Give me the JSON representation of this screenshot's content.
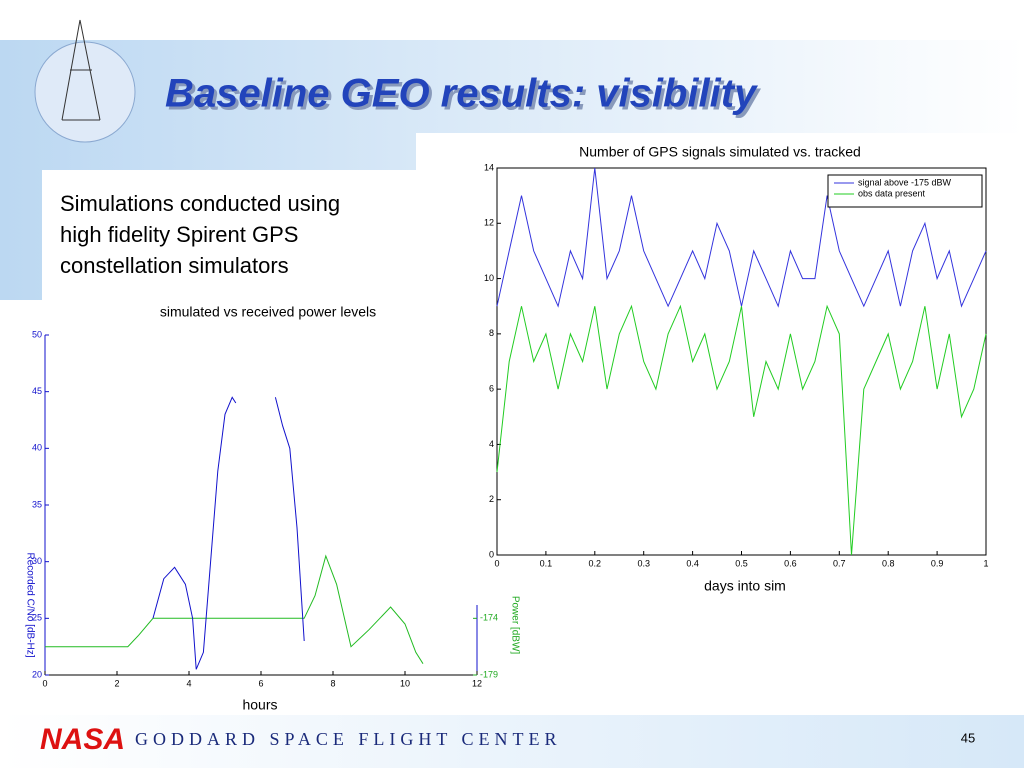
{
  "slide": {
    "title": "Baseline GEO results: visibility",
    "body": [
      "Simulations conducted using",
      "high fidelity Spirent GPS",
      "constellation simulators"
    ],
    "footer": "GODDARD SPACE FLIGHT CENTER",
    "logo": "NASA",
    "page": "45"
  },
  "chart_data": [
    {
      "type": "line",
      "title": "Number of GPS signals simulated vs. tracked",
      "xlabel": "days into sim",
      "legend": "upper right",
      "xlim": [
        0,
        1
      ],
      "xticks": [
        0,
        0.1,
        0.2,
        0.3,
        0.4,
        0.5,
        0.6,
        0.7,
        0.8,
        0.9,
        1
      ],
      "ylim": [
        0,
        14
      ],
      "yticks": [
        0,
        2,
        4,
        6,
        8,
        10,
        12,
        14
      ],
      "series": [
        {
          "name": "signal above -175 dBW",
          "color": "#3333dd",
          "x": [
            0,
            0.025,
            0.05,
            0.075,
            0.1,
            0.125,
            0.15,
            0.175,
            0.2,
            0.225,
            0.25,
            0.275,
            0.3,
            0.325,
            0.35,
            0.375,
            0.4,
            0.425,
            0.45,
            0.475,
            0.5,
            0.525,
            0.55,
            0.575,
            0.6,
            0.625,
            0.65,
            0.675,
            0.7,
            0.725,
            0.75,
            0.775,
            0.8,
            0.825,
            0.85,
            0.875,
            0.9,
            0.925,
            0.95,
            0.975,
            1
          ],
          "values": [
            9,
            11,
            13,
            11,
            10,
            9,
            11,
            10,
            14,
            10,
            11,
            13,
            11,
            10,
            9,
            10,
            11,
            10,
            12,
            11,
            9,
            11,
            10,
            9,
            11,
            10,
            10,
            13,
            11,
            10,
            9,
            10,
            11,
            9,
            11,
            12,
            10,
            11,
            9,
            10,
            11
          ]
        },
        {
          "name": "obs data present",
          "color": "#22cc22",
          "x": [
            0,
            0.025,
            0.05,
            0.075,
            0.1,
            0.125,
            0.15,
            0.175,
            0.2,
            0.225,
            0.25,
            0.275,
            0.3,
            0.325,
            0.35,
            0.375,
            0.4,
            0.425,
            0.45,
            0.475,
            0.5,
            0.525,
            0.55,
            0.575,
            0.6,
            0.625,
            0.65,
            0.675,
            0.7,
            0.725,
            0.75,
            0.775,
            0.8,
            0.825,
            0.85,
            0.875,
            0.9,
            0.925,
            0.95,
            0.975,
            1
          ],
          "values": [
            3,
            7,
            9,
            7,
            8,
            6,
            8,
            7,
            9,
            6,
            8,
            9,
            7,
            6,
            8,
            9,
            7,
            8,
            6,
            7,
            9,
            5,
            7,
            6,
            8,
            6,
            7,
            9,
            8,
            0,
            6,
            7,
            8,
            6,
            7,
            9,
            6,
            8,
            5,
            6,
            8
          ]
        }
      ]
    },
    {
      "type": "line",
      "title": "simulated vs received power levels",
      "xlabel": "hours",
      "ylabel": "Recorded C/No [dB-Hz]",
      "y2label": "Power [dBW]",
      "xlim": [
        0,
        12
      ],
      "xticks": [
        0,
        2,
        4,
        6,
        8,
        10,
        12
      ],
      "ylim": [
        20,
        50
      ],
      "yticks": [
        20,
        25,
        30,
        35,
        40,
        45,
        50
      ],
      "y2lim": [
        -179,
        -149
      ],
      "y2ticks": [
        -179,
        -174
      ],
      "series": [
        {
          "color": "#22bb22",
          "axis": "y2",
          "x": [
            0,
            2.3,
            2.6,
            3,
            7.2,
            7.5,
            7.8,
            8.1,
            8.5,
            9,
            9.6,
            10,
            10.3,
            10.5
          ],
          "values": [
            -176.5,
            -176.5,
            -175.5,
            -174,
            -174,
            -172,
            -168.5,
            -171,
            -176.5,
            -175,
            -173,
            -174.5,
            -177,
            -178
          ]
        },
        {
          "color": "#1111cc",
          "x": [
            3,
            3.3,
            3.6,
            3.9,
            4.1,
            4.2,
            4.4,
            4.6,
            4.8,
            5.0,
            5.2,
            5.3,
            5.9,
            6.4,
            6.6,
            6.8,
            7.0,
            7.2
          ],
          "values": [
            25,
            28.5,
            29.5,
            28,
            25,
            20.5,
            22,
            30,
            38,
            43,
            44.5,
            44,
            null,
            44.5,
            42,
            40,
            33,
            23
          ]
        }
      ]
    }
  ]
}
